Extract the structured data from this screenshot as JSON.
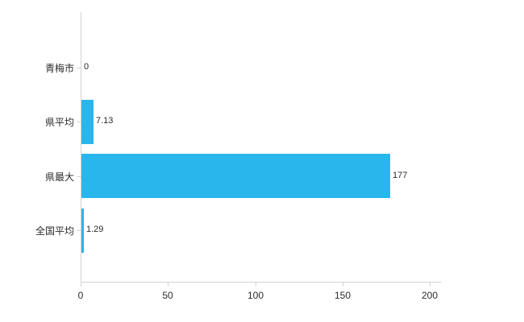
{
  "chart_data": {
    "type": "bar",
    "orientation": "horizontal",
    "title": "",
    "categories": [
      "青梅市",
      "県平均",
      "県最大",
      "全国平均"
    ],
    "values": [
      0,
      7.13,
      177,
      1.29
    ],
    "value_labels": [
      "0",
      "7.13",
      "177",
      "1.29"
    ],
    "x_ticks": [
      0,
      50,
      100,
      150,
      200
    ],
    "xlim": [
      0,
      206
    ],
    "grid": false,
    "legend": "none",
    "bar_color": "#29b6ec",
    "axis_color": "#d3d3d3",
    "text_color": "#2b2b2b"
  }
}
